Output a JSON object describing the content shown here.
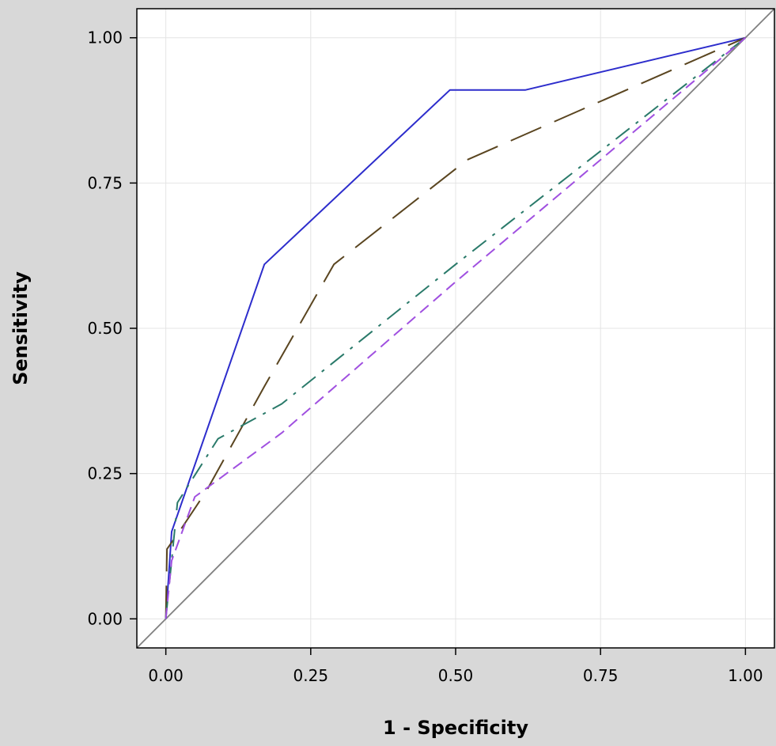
{
  "chart_data": {
    "type": "line",
    "title": "",
    "xlabel": "1 - Specificity",
    "ylabel": "Sensitivity",
    "xlim": [
      -0.05,
      1.05
    ],
    "ylim": [
      -0.05,
      1.05
    ],
    "xticks": [
      "0.00",
      "0.25",
      "0.50",
      "0.75",
      "1.00"
    ],
    "yticks": [
      "0.00",
      "0.25",
      "0.50",
      "0.75",
      "1.00"
    ],
    "grid": true,
    "reference_line": {
      "x": [
        0,
        1
      ],
      "y": [
        0,
        1
      ],
      "color": "#808080"
    },
    "series": [
      {
        "color": "#2d2dcc",
        "dash": "solid",
        "x": [
          0.0,
          0.01,
          0.17,
          0.49,
          0.62,
          1.0
        ],
        "y": [
          0.0,
          0.15,
          0.61,
          0.91,
          0.91,
          1.0
        ]
      },
      {
        "color": "#5a4520",
        "dash": "long-dash",
        "x": [
          0.0,
          0.002,
          0.03,
          0.07,
          0.17,
          0.29,
          0.52,
          1.0
        ],
        "y": [
          0.0,
          0.12,
          0.16,
          0.22,
          0.4,
          0.61,
          0.79,
          1.0
        ]
      },
      {
        "color": "#2a7a6a",
        "dash": "dash-dot",
        "x": [
          0.0,
          0.02,
          0.09,
          0.2,
          0.5,
          1.0
        ],
        "y": [
          0.0,
          0.2,
          0.31,
          0.37,
          0.61,
          1.0
        ]
      },
      {
        "color": "#a050e0",
        "dash": "short-dash",
        "x": [
          0.0,
          0.01,
          0.05,
          0.2,
          0.5,
          1.0
        ],
        "y": [
          0.0,
          0.1,
          0.21,
          0.32,
          0.58,
          1.0
        ]
      }
    ]
  }
}
